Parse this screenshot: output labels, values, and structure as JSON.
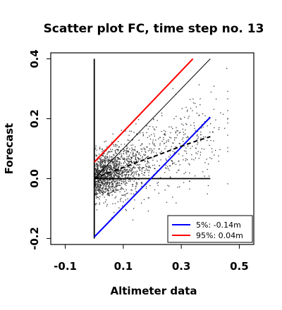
{
  "chart_data": {
    "type": "scatter",
    "title": "Scatter plot FC, time step no. 13",
    "xlabel": "Altimeter data",
    "ylabel": "Forecast",
    "xlim": [
      -0.15,
      0.55
    ],
    "ylim": [
      -0.22,
      0.42
    ],
    "x_ticks": [
      -0.1,
      0.1,
      0.3,
      0.5
    ],
    "x_tick_labels": [
      "-0.1",
      "0.1",
      "0.3",
      "0.5"
    ],
    "y_ticks": [
      -0.2,
      0.0,
      0.2,
      0.4
    ],
    "y_tick_labels": [
      "-0.2",
      "0.0",
      "0.2",
      "0.4"
    ],
    "grid": false,
    "legend_position": "bottom-right",
    "points_color": "#333333",
    "identity_line": {
      "x": [
        0,
        0.4
      ],
      "y": [
        0,
        0.4
      ],
      "color": "#000000"
    },
    "mean_curve": {
      "style": "dashed",
      "color": "#000000",
      "x": [
        0.0,
        0.05,
        0.1,
        0.15,
        0.2,
        0.25,
        0.3,
        0.35,
        0.4
      ],
      "y": [
        0.0,
        0.02,
        0.037,
        0.055,
        0.072,
        0.09,
        0.108,
        0.125,
        0.14
      ]
    },
    "zero_lines": {
      "vertical": {
        "x": 0,
        "y": [
          -0.2,
          0.4
        ]
      },
      "horizontal": {
        "y": 0,
        "x": [
          0,
          0.4
        ]
      }
    },
    "quantile_lines": [
      {
        "label": "5%: -0.14m",
        "color": "#0000ff",
        "x": [
          0,
          0.4
        ],
        "y": [
          -0.195,
          0.205
        ]
      },
      {
        "label": "95%:  0.04m",
        "color": "#ff0000",
        "x": [
          0,
          0.34
        ],
        "y": [
          0.055,
          0.4
        ]
      }
    ],
    "scatter": {
      "generated": true,
      "n": 1800,
      "description_of_distribution": "dense cloud near origin, spreading with increasing x"
    }
  }
}
